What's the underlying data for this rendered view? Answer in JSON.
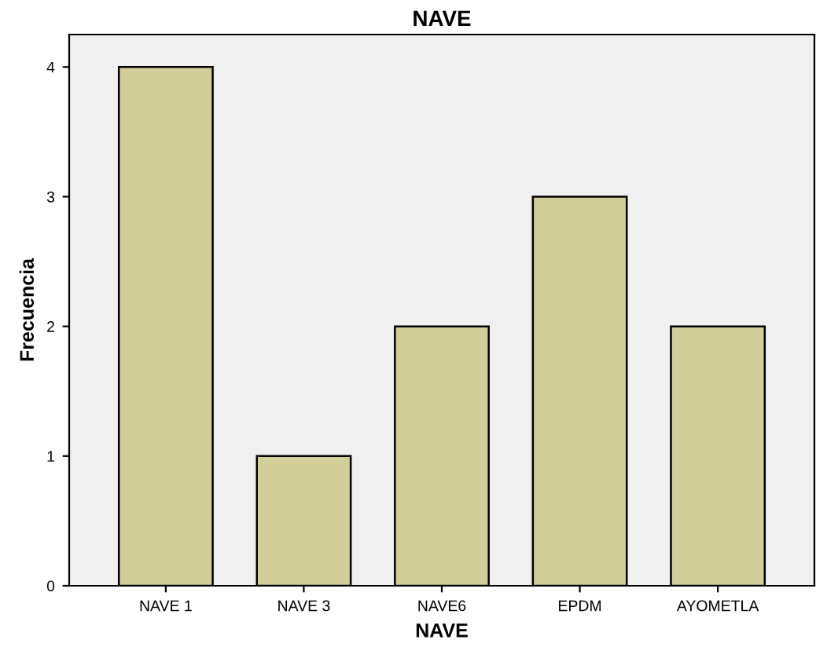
{
  "chart_data": {
    "type": "bar",
    "title": "NAVE",
    "xlabel": "NAVE",
    "ylabel": "Frecuencia",
    "categories": [
      "NAVE 1",
      "NAVE 3",
      "NAVE6",
      "EPDM",
      "AYOMETLA"
    ],
    "values": [
      4,
      1,
      2,
      3,
      2
    ],
    "color": "#d3ce98",
    "ylim": [
      0,
      4.25
    ],
    "yticks": [
      0,
      1,
      2,
      3,
      4
    ],
    "grid": false,
    "legend": false
  }
}
